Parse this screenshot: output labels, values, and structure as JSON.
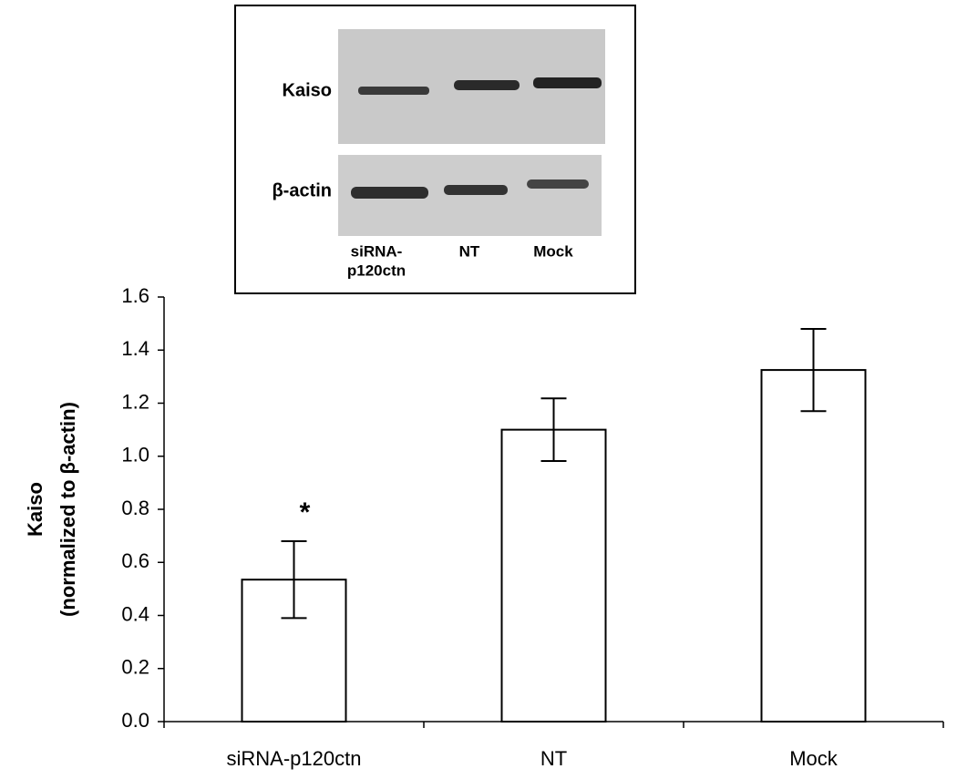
{
  "chart_data": {
    "type": "bar",
    "y_label_lines": [
      "Kaiso",
      "(normalized to β-actin)"
    ],
    "categories": [
      "siRNA-p120ctn",
      "NT",
      "Mock"
    ],
    "values": [
      0.535,
      1.1,
      1.325
    ],
    "errors": [
      0.145,
      0.118,
      0.155
    ],
    "color": "#ffffff",
    "ylim": [
      0,
      1.6
    ],
    "yticks": [
      {
        "value": 0,
        "label": "0.0"
      },
      0.2,
      0.4,
      0.6,
      0.8,
      {
        "value": 1,
        "label": "1.0"
      },
      1.2,
      1.4,
      1.6
    ],
    "annotations": [
      {
        "text": "*",
        "category": "siRNA-p120ctn"
      }
    ],
    "inset": {
      "row_labels": [
        "Kaiso",
        "β-actin"
      ],
      "lanes": [
        {
          "lines": [
            "siRNA-",
            "p120ctn"
          ]
        },
        {
          "lines": [
            "NT"
          ]
        },
        {
          "lines": [
            "Mock"
          ]
        }
      ]
    }
  }
}
